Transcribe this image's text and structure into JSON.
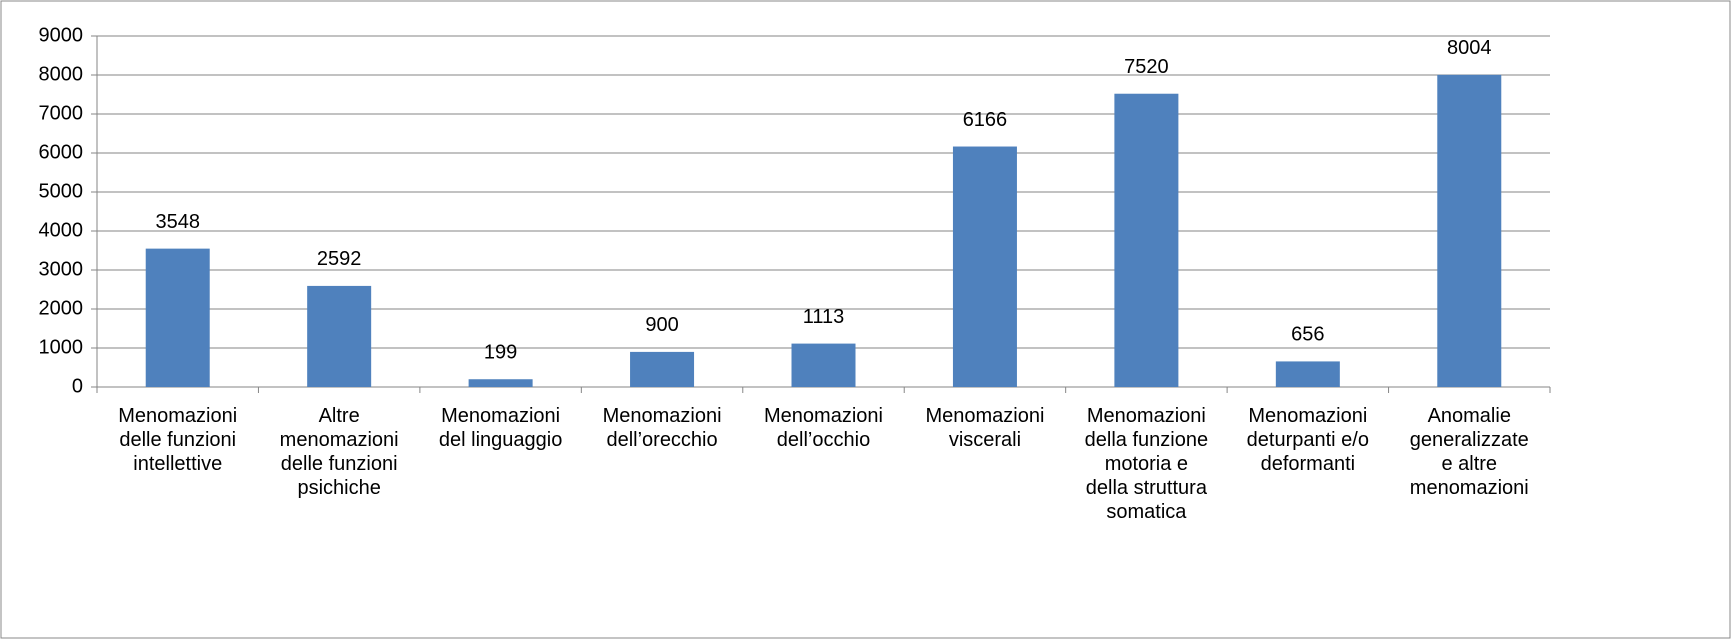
{
  "chart_data": {
    "type": "bar",
    "categories": [
      "Menomazioni\ndelle funzioni\nintellettive",
      "Altre\nmenomazioni\ndelle funzioni\npsichiche",
      "Menomazioni\ndel linguaggio",
      "Menomazioni\ndell’orecchio",
      "Menomazioni\ndell’occhio",
      "Menomazioni\nviscerali",
      "Menomazioni\ndella funzione\nmotoria e\ndella struttura\nsomatica",
      "Menomazioni\ndeturpanti e/o\ndeformanti",
      "Anomalie\ngeneralizzate\ne altre\nmenomazioni"
    ],
    "values": [
      3548,
      2592,
      199,
      900,
      1113,
      6166,
      7520,
      656,
      8004
    ],
    "color": "#4f81bd",
    "ylim": [
      0,
      9000
    ],
    "yticks": [
      0,
      1000,
      2000,
      3000,
      4000,
      5000,
      6000,
      7000,
      8000,
      9000
    ],
    "grid": true
  }
}
